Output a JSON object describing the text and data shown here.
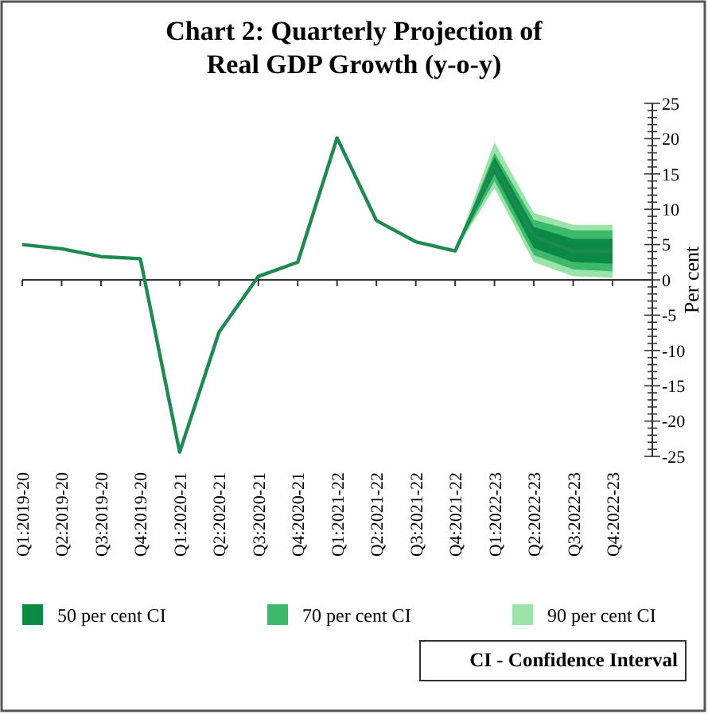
{
  "chart_data": {
    "type": "line",
    "title": "Chart 2: Quarterly Projection of Real GDP Growth (y-o-y)",
    "ylabel": "Per cent",
    "categories": [
      "Q1:2019-20",
      "Q2:2019-20",
      "Q3:2019-20",
      "Q4:2019-20",
      "Q1:2020-21",
      "Q2:2020-21",
      "Q3:2020-21",
      "Q4:2020-21",
      "Q1:2021-22",
      "Q2:2021-22",
      "Q3:2021-22",
      "Q4:2021-22",
      "Q1:2022-23",
      "Q2:2022-23",
      "Q3:2022-23",
      "Q4:2022-23"
    ],
    "series": [
      {
        "type": "area",
        "name": "50 per cent CI",
        "color": "#0a8a45",
        "values": [
          null,
          null,
          null,
          null,
          null,
          null,
          null,
          null,
          null,
          null,
          null,
          null,
          null,
          null,
          null,
          null
        ],
        "lower": [
          null,
          null,
          null,
          null,
          null,
          null,
          null,
          null,
          null,
          null,
          null,
          4.1,
          15,
          4.5,
          2.5,
          2.3
        ],
        "upper": [
          null,
          null,
          null,
          null,
          null,
          null,
          null,
          null,
          null,
          null,
          null,
          4.1,
          17.4,
          7.5,
          5.8,
          5.8
        ]
      },
      {
        "type": "area",
        "name": "70 per cent CI",
        "color": "#3cb96a",
        "values": [
          null,
          null,
          null,
          null,
          null,
          null,
          null,
          null,
          null,
          null,
          null,
          null,
          null,
          null,
          null,
          null
        ],
        "lower": [
          null,
          null,
          null,
          null,
          null,
          null,
          null,
          null,
          null,
          null,
          null,
          4.1,
          14,
          3.5,
          1.5,
          1.2
        ],
        "upper": [
          null,
          null,
          null,
          null,
          null,
          null,
          null,
          null,
          null,
          null,
          null,
          4.1,
          18,
          8.5,
          7,
          7
        ]
      },
      {
        "type": "area",
        "name": "90 per cent CI",
        "color": "#9be3a8",
        "values": [
          null,
          null,
          null,
          null,
          null,
          null,
          null,
          null,
          null,
          null,
          null,
          null,
          null,
          null,
          null,
          null
        ],
        "lower": [
          null,
          null,
          null,
          null,
          null,
          null,
          null,
          null,
          null,
          null,
          null,
          4.1,
          13,
          2.5,
          0.5,
          0.3
        ],
        "upper": [
          null,
          null,
          null,
          null,
          null,
          null,
          null,
          null,
          null,
          null,
          null,
          4.1,
          19.5,
          9.5,
          7.8,
          7.8
        ]
      },
      {
        "color": "#1e8a52",
        "values": [
          5,
          4.4,
          3.3,
          3,
          -24.4,
          -7.4,
          0.5,
          2.5,
          20.1,
          8.4,
          5.4,
          4.1,
          16.2,
          6.2,
          4.1,
          4
        ]
      }
    ],
    "ylim": [
      -25,
      25
    ],
    "yticks": [
      -25,
      {
        "value": -24,
        "label": null
      },
      {
        "value": -23,
        "label": null
      },
      {
        "value": -22,
        "label": null
      },
      {
        "value": -21,
        "label": null
      },
      -20,
      {
        "value": -19,
        "label": null
      },
      {
        "value": -18,
        "label": null
      },
      {
        "value": -17,
        "label": null
      },
      {
        "value": -16,
        "label": null
      },
      -15,
      {
        "value": -14,
        "label": null
      },
      {
        "value": -13,
        "label": null
      },
      {
        "value": -12,
        "label": null
      },
      {
        "value": -11,
        "label": null
      },
      -10,
      {
        "value": -9,
        "label": null
      },
      {
        "value": -8,
        "label": null
      },
      {
        "value": -7,
        "label": null
      },
      {
        "value": -6,
        "label": null
      },
      -5,
      {
        "value": -4,
        "label": null
      },
      {
        "value": -3,
        "label": null
      },
      {
        "value": -2,
        "label": null
      },
      {
        "value": -1,
        "label": null
      },
      0,
      {
        "value": 1,
        "label": null
      },
      {
        "value": 2,
        "label": null
      },
      {
        "value": 3,
        "label": null
      },
      {
        "value": 4,
        "label": null
      },
      5,
      {
        "value": 6,
        "label": null
      },
      {
        "value": 7,
        "label": null
      },
      {
        "value": 8,
        "label": null
      },
      {
        "value": 9,
        "label": null
      },
      10,
      {
        "value": 11,
        "label": null
      },
      {
        "value": 12,
        "label": null
      },
      {
        "value": 13,
        "label": null
      },
      {
        "value": 14,
        "label": null
      },
      15,
      {
        "value": 16,
        "label": null
      },
      {
        "value": 17,
        "label": null
      },
      {
        "value": 18,
        "label": null
      },
      {
        "value": 19,
        "label": null
      },
      20,
      {
        "value": 21,
        "label": null
      },
      {
        "value": 22,
        "label": null
      },
      {
        "value": 23,
        "label": null
      },
      {
        "value": 24,
        "label": null
      },
      25
    ],
    "legend": "bottom",
    "marker": "none",
    "line_style": "solid",
    "annotations": [
      "CI - Confidence Interval"
    ]
  }
}
